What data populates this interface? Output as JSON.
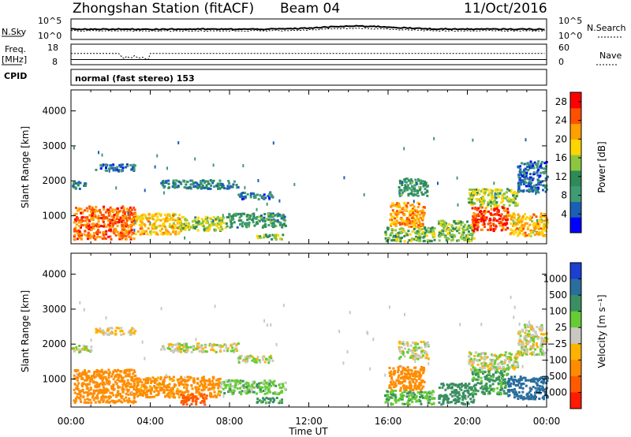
{
  "header": {
    "station": "Zhongshan Station (fitACF)",
    "beam": "Beam 04",
    "date": "11/Oct/2016"
  },
  "summary_panels": {
    "nsky_label": "N.Sky",
    "nsky_ticks": [
      "10^5",
      "10^0"
    ],
    "nsearch_label": "N.Search",
    "nsearch_ticks": [
      "10^5",
      "10^0"
    ],
    "freq_label_top": "Freq.",
    "freq_label_unit": "[MHz]",
    "freq_ticks": [
      "18",
      "8"
    ],
    "nave_label": "Nave",
    "nave_ticks": [
      "60",
      "0"
    ],
    "cpid_label": "CPID",
    "cpid_text": "normal (fast stereo) 153"
  },
  "colors": {
    "power": [
      "#0000ff",
      "#1b5fb5",
      "#3f9b72",
      "#2e8b57",
      "#8cc63f",
      "#ffd500",
      "#ff9f00",
      "#ff5000",
      "#ff0000"
    ],
    "velocity": [
      "#1a3fd1",
      "#2a6e9e",
      "#3a8f62",
      "#66cc33",
      "#c8c8c0",
      "#ffb300",
      "#ff8c00",
      "#ff5a00",
      "#ff1a00"
    ]
  },
  "chart_data": [
    {
      "type": "heatmap",
      "name": "power",
      "ylabel": "Slant Range [km]",
      "yticks": [
        "1000",
        "2000",
        "3000",
        "4000"
      ],
      "ylim": [
        200,
        4600
      ],
      "xticks": [
        "00:00",
        "04:00",
        "08:00",
        "12:00",
        "16:00",
        "20:00",
        "00:00"
      ],
      "xlim": [
        0,
        24
      ],
      "colorbar": {
        "label": "Power [dB]",
        "ticks": [
          "4",
          "8",
          "12",
          "16",
          "20",
          "24",
          "28"
        ],
        "range": [
          0,
          30
        ]
      },
      "regions": [
        {
          "t0": 0.1,
          "t1": 3.2,
          "r0": 350,
          "r1": 1300,
          "level": 24
        },
        {
          "t0": 3.2,
          "t1": 5.5,
          "r0": 500,
          "r1": 1100,
          "level": 20
        },
        {
          "t0": 5.5,
          "t1": 7.8,
          "r0": 600,
          "r1": 1000,
          "level": 16
        },
        {
          "t0": 7.8,
          "t1": 10.8,
          "r0": 700,
          "r1": 1100,
          "level": 10
        },
        {
          "t0": 9.3,
          "t1": 10.7,
          "r0": 350,
          "r1": 500,
          "level": 14
        },
        {
          "t0": 1.2,
          "t1": 3.2,
          "r0": 2300,
          "r1": 2500,
          "level": 6
        },
        {
          "t0": 4.5,
          "t1": 8.4,
          "r0": 1800,
          "r1": 2050,
          "level": 8
        },
        {
          "t0": 8.4,
          "t1": 10.2,
          "r0": 1500,
          "r1": 1700,
          "level": 6
        },
        {
          "t0": 16.0,
          "t1": 17.8,
          "r0": 700,
          "r1": 1400,
          "level": 22
        },
        {
          "t0": 15.8,
          "t1": 18.3,
          "r0": 300,
          "r1": 700,
          "level": 14
        },
        {
          "t0": 16.5,
          "t1": 18.0,
          "r0": 1600,
          "r1": 2100,
          "level": 10
        },
        {
          "t0": 18.5,
          "t1": 20.3,
          "r0": 300,
          "r1": 900,
          "level": 14
        },
        {
          "t0": 20.2,
          "t1": 22.0,
          "r0": 600,
          "r1": 1300,
          "level": 26
        },
        {
          "t0": 20.0,
          "t1": 22.5,
          "r0": 1300,
          "r1": 1800,
          "level": 16
        },
        {
          "t0": 22.0,
          "t1": 24.0,
          "r0": 450,
          "r1": 1100,
          "level": 20
        },
        {
          "t0": 22.5,
          "t1": 24.0,
          "r0": 1700,
          "r1": 2600,
          "level": 6
        },
        {
          "t0": 0.0,
          "t1": 0.7,
          "r0": 1800,
          "r1": 2000,
          "level": 8
        }
      ]
    },
    {
      "type": "heatmap",
      "name": "velocity",
      "ylabel": "Slant Range [km]",
      "yticks": [
        "1000",
        "2000",
        "3000",
        "4000"
      ],
      "ylim": [
        200,
        4600
      ],
      "xticks": [
        "00:00",
        "04:00",
        "08:00",
        "12:00",
        "16:00",
        "20:00",
        "00:00"
      ],
      "xlim": [
        0,
        24
      ],
      "xlabel": "Time UT",
      "colorbar": {
        "label": "Velocity [m s⁻¹]",
        "ticks": [
          "1000",
          "500",
          "100",
          "25",
          "−25",
          "−100",
          "−500",
          "−1000"
        ],
        "range": [
          -1250,
          1250
        ]
      },
      "regions": [
        {
          "t0": 0.1,
          "t1": 3.2,
          "r0": 350,
          "r1": 1300,
          "level": -200
        },
        {
          "t0": 3.2,
          "t1": 7.5,
          "r0": 500,
          "r1": 1100,
          "level": -150
        },
        {
          "t0": 5.5,
          "t1": 6.8,
          "r0": 300,
          "r1": 600,
          "level": -600
        },
        {
          "t0": 7.5,
          "t1": 10.8,
          "r0": 600,
          "r1": 1000,
          "level": 60
        },
        {
          "t0": 9.3,
          "t1": 10.7,
          "r0": 350,
          "r1": 500,
          "level": 150
        },
        {
          "t0": 0.0,
          "t1": 1.0,
          "r0": 1800,
          "r1": 2000,
          "level": 0
        },
        {
          "t0": 1.2,
          "t1": 3.2,
          "r0": 2300,
          "r1": 2500,
          "level": -50
        },
        {
          "t0": 4.5,
          "t1": 8.4,
          "r0": 1800,
          "r1": 2050,
          "level": 5
        },
        {
          "t0": 8.4,
          "t1": 10.2,
          "r0": 1500,
          "r1": 1700,
          "level": 5
        },
        {
          "t0": 16.0,
          "t1": 17.8,
          "r0": 700,
          "r1": 1400,
          "level": -400
        },
        {
          "t0": 15.8,
          "t1": 18.3,
          "r0": 300,
          "r1": 700,
          "level": 80
        },
        {
          "t0": 16.5,
          "t1": 18.0,
          "r0": 1600,
          "r1": 2100,
          "level": 5
        },
        {
          "t0": 18.5,
          "t1": 20.3,
          "r0": 300,
          "r1": 900,
          "level": 200
        },
        {
          "t0": 20.2,
          "t1": 22.0,
          "r0": 600,
          "r1": 1300,
          "level": 120
        },
        {
          "t0": 20.0,
          "t1": 22.5,
          "r0": 1300,
          "r1": 1800,
          "level": 5
        },
        {
          "t0": 22.0,
          "t1": 24.0,
          "r0": 450,
          "r1": 1100,
          "level": 700
        },
        {
          "t0": 22.5,
          "t1": 24.0,
          "r0": 1700,
          "r1": 2600,
          "level": 0
        }
      ]
    }
  ]
}
